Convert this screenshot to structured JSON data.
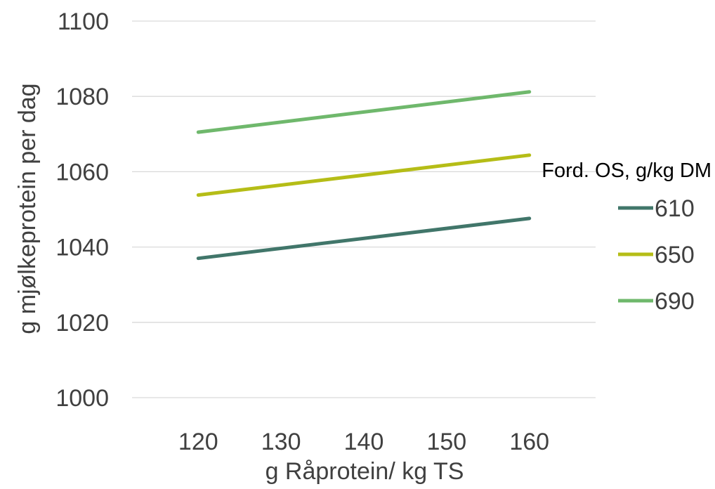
{
  "chart_data": {
    "type": "line",
    "title": "",
    "xlabel": "g Råprotein/ kg TS",
    "ylabel": "g mjølkeprotein per dag",
    "x": [
      120,
      160
    ],
    "xticks": [
      120,
      130,
      140,
      150,
      160
    ],
    "xlim": [
      112,
      168
    ],
    "ylim": [
      1000,
      1100
    ],
    "yticks": [
      1000,
      1020,
      1040,
      1060,
      1080,
      1100
    ],
    "grid": true,
    "legend": {
      "title": "Ford. OS, g/kg DM",
      "placement": "right"
    },
    "series": [
      {
        "name": "610",
        "color": "#41766a",
        "values": [
          1037,
          1047.6
        ]
      },
      {
        "name": "650",
        "color": "#b5bd17",
        "values": [
          1053.8,
          1064.4
        ]
      },
      {
        "name": "690",
        "color": "#6fb86c",
        "values": [
          1070.5,
          1081.2
        ]
      }
    ]
  }
}
